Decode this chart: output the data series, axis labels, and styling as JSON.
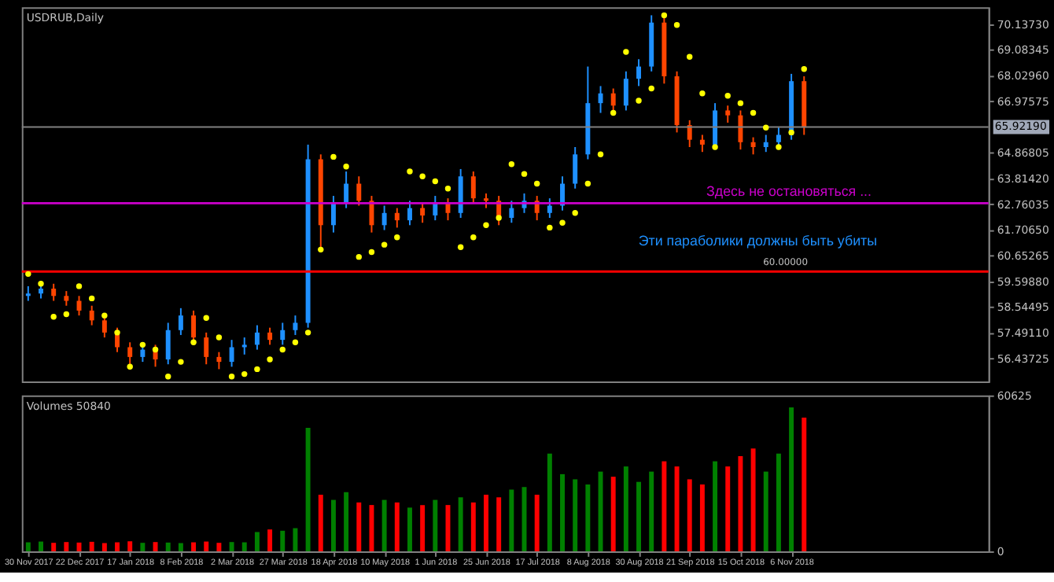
{
  "chart_data": [
    {
      "type": "candlestick",
      "title": "USDRUB,Daily",
      "categories": [
        null,
        null,
        null,
        null,
        null,
        null,
        null,
        null,
        null,
        null,
        null,
        null,
        null,
        null,
        null,
        null,
        null,
        null,
        null,
        null,
        null,
        null,
        null,
        null,
        null,
        null,
        null,
        null,
        null,
        null,
        null,
        null,
        null,
        null,
        null,
        null,
        null,
        null,
        null,
        null,
        null,
        null,
        null,
        null,
        null,
        null,
        null,
        null,
        null,
        null,
        null,
        null,
        null,
        null,
        null,
        null,
        null,
        null,
        null,
        null,
        null,
        null,
        null,
        null,
        null,
        null,
        null,
        null,
        null,
        null,
        null,
        null,
        null,
        null,
        null,
        null
      ],
      "ohlc": [
        [
          59.0,
          59.4,
          58.8,
          59.1
        ],
        [
          59.1,
          59.6,
          58.9,
          59.3
        ],
        [
          59.3,
          59.5,
          58.8,
          59.0
        ],
        [
          59.0,
          59.2,
          58.6,
          58.8
        ],
        [
          58.8,
          59.0,
          58.2,
          58.4
        ],
        [
          58.4,
          58.6,
          57.8,
          58.0
        ],
        [
          58.0,
          58.2,
          57.3,
          57.5
        ],
        [
          57.5,
          57.7,
          56.7,
          56.9
        ],
        [
          56.9,
          57.1,
          56.2,
          56.5
        ],
        [
          56.5,
          57.1,
          56.3,
          56.8
        ],
        [
          56.8,
          57.0,
          56.1,
          56.4
        ],
        [
          56.4,
          57.9,
          56.2,
          57.6
        ],
        [
          57.6,
          58.5,
          57.4,
          58.2
        ],
        [
          58.2,
          58.4,
          57.1,
          57.3
        ],
        [
          57.3,
          57.5,
          56.2,
          56.5
        ],
        [
          56.5,
          56.7,
          56.0,
          56.3
        ],
        [
          56.3,
          57.2,
          56.1,
          56.9
        ],
        [
          56.9,
          57.3,
          56.6,
          57.0
        ],
        [
          57.0,
          57.8,
          56.8,
          57.5
        ],
        [
          57.5,
          57.7,
          57.0,
          57.2
        ],
        [
          57.2,
          57.9,
          57.0,
          57.6
        ],
        [
          57.6,
          58.2,
          57.4,
          57.9
        ],
        [
          57.9,
          65.2,
          57.7,
          64.6
        ],
        [
          64.6,
          64.8,
          61.0,
          61.9
        ],
        [
          61.9,
          63.1,
          61.6,
          62.8
        ],
        [
          62.8,
          64.1,
          62.6,
          63.6
        ],
        [
          63.6,
          63.9,
          62.7,
          62.9
        ],
        [
          62.9,
          63.1,
          61.6,
          61.9
        ],
        [
          61.9,
          62.7,
          61.7,
          62.4
        ],
        [
          62.4,
          62.6,
          61.8,
          62.1
        ],
        [
          62.1,
          62.9,
          61.9,
          62.6
        ],
        [
          62.6,
          62.8,
          62.0,
          62.3
        ],
        [
          62.3,
          63.1,
          62.1,
          62.8
        ],
        [
          62.8,
          63.0,
          62.1,
          62.4
        ],
        [
          62.4,
          64.2,
          62.2,
          63.9
        ],
        [
          63.9,
          64.1,
          62.8,
          63.0
        ],
        [
          63.0,
          63.2,
          62.6,
          62.9
        ],
        [
          62.9,
          63.1,
          61.9,
          62.2
        ],
        [
          62.2,
          62.9,
          62.0,
          62.6
        ],
        [
          62.6,
          63.2,
          62.4,
          62.9
        ],
        [
          62.9,
          63.1,
          62.1,
          62.4
        ],
        [
          62.4,
          63.0,
          62.2,
          62.7
        ],
        [
          62.7,
          63.9,
          62.5,
          63.6
        ],
        [
          63.6,
          65.1,
          63.4,
          64.8
        ],
        [
          64.8,
          68.4,
          64.6,
          66.9
        ],
        [
          66.9,
          67.6,
          66.5,
          67.3
        ],
        [
          67.3,
          67.5,
          66.5,
          66.8
        ],
        [
          66.8,
          68.2,
          66.6,
          67.9
        ],
        [
          67.9,
          68.7,
          67.6,
          68.4
        ],
        [
          68.4,
          70.5,
          68.2,
          70.2
        ],
        [
          70.2,
          70.4,
          67.7,
          68.0
        ],
        [
          68.0,
          68.2,
          65.7,
          66.0
        ],
        [
          66.0,
          66.2,
          65.1,
          65.4
        ],
        [
          65.4,
          65.6,
          64.9,
          65.2
        ],
        [
          65.2,
          66.9,
          65.0,
          66.6
        ],
        [
          66.6,
          66.8,
          66.1,
          66.4
        ],
        [
          66.4,
          66.6,
          65.0,
          65.3
        ],
        [
          65.3,
          65.5,
          64.8,
          65.1
        ],
        [
          65.1,
          65.6,
          64.9,
          65.3
        ],
        [
          65.3,
          65.9,
          65.1,
          65.6
        ],
        [
          65.6,
          68.1,
          65.4,
          67.8
        ],
        [
          67.8,
          68.0,
          65.6,
          65.9
        ],
        null,
        null,
        null,
        null,
        null,
        null,
        null,
        null,
        null,
        null,
        null,
        null,
        null,
        null
      ],
      "colors": [
        "#1e90ff",
        "#1e90ff",
        "#ff4500",
        "#ff4500",
        "#ff4500",
        "#ff4500",
        "#ff4500",
        "#ff4500",
        "#ff4500",
        "#1e90ff",
        "#ff4500",
        "#1e90ff",
        "#1e90ff",
        "#ff4500",
        "#ff4500",
        "#ff4500",
        "#1e90ff",
        "#1e90ff",
        "#1e90ff",
        "#ff4500",
        "#1e90ff",
        "#1e90ff",
        "#1e90ff",
        "#ff4500",
        "#1e90ff",
        "#1e90ff",
        "#ff4500",
        "#ff4500",
        "#1e90ff",
        "#ff4500",
        "#1e90ff",
        "#ff4500",
        "#1e90ff",
        "#ff4500",
        "#1e90ff",
        "#ff4500",
        "#ff4500",
        "#ff4500",
        "#1e90ff",
        "#1e90ff",
        "#ff4500",
        "#1e90ff",
        "#1e90ff",
        "#1e90ff",
        "#1e90ff",
        "#1e90ff",
        "#ff4500",
        "#1e90ff",
        "#1e90ff",
        "#1e90ff",
        "#ff4500",
        "#ff4500",
        "#ff4500",
        "#ff4500",
        "#1e90ff",
        "#ff4500",
        "#ff4500",
        "#ff4500",
        "#1e90ff",
        "#1e90ff",
        "#1e90ff",
        "#ff4500",
        null,
        null,
        null,
        null,
        null,
        null,
        null,
        null,
        null,
        null,
        null,
        null,
        null,
        null
      ],
      "series": [
        {
          "type": "scatter",
          "color": "#ffff00",
          "marker": "circle",
          "values": [
            59.9,
            59.5,
            58.15,
            58.25,
            59.4,
            58.9,
            58.2,
            57.5,
            56.1,
            57.0,
            56.8,
            55.7,
            56.3,
            57.1,
            58.1,
            57.3,
            55.7,
            55.8,
            56.0,
            56.4,
            56.8,
            57.1,
            57.5,
            60.9,
            64.7,
            64.3,
            60.6,
            60.8,
            61.1,
            61.4,
            64.1,
            63.9,
            63.7,
            63.4,
            61.0,
            61.4,
            61.9,
            62.2,
            64.4,
            64.0,
            63.6,
            61.8,
            62.0,
            62.4,
            63.6,
            64.8,
            66.5,
            69.0,
            67.0,
            67.5,
            70.5,
            70.1,
            68.8,
            67.3,
            65.1,
            67.2,
            66.9,
            66.5,
            65.9,
            65.1,
            65.7,
            68.3,
            null,
            null,
            null,
            null,
            null,
            null,
            null,
            null,
            null,
            null,
            null,
            null,
            null,
            null
          ]
        }
      ],
      "ylim": [
        55.5,
        70.83
      ],
      "yticks": [
        {
          "value": 70.1373,
          "label": "70.13730"
        },
        {
          "value": 69.08345,
          "label": "69.08345"
        },
        {
          "value": 68.0296,
          "label": "68.02960"
        },
        {
          "value": 66.97575,
          "label": "66.97575"
        },
        {
          "value": 64.86805,
          "label": "64.86805"
        },
        {
          "value": 63.8142,
          "label": "63.81420"
        },
        {
          "value": 62.76035,
          "label": "62.76035"
        },
        {
          "value": 61.7065,
          "label": "61.70650"
        },
        {
          "value": 60.65265,
          "label": "60.65265"
        },
        {
          "value": 59.5988,
          "label": "59.59880"
        },
        {
          "value": 58.54495,
          "label": "58.54495"
        },
        {
          "value": 57.4911,
          "label": "57.49110"
        },
        {
          "value": 56.43725,
          "label": "56.43725"
        }
      ],
      "ref_lines": [
        {
          "axis": "y",
          "value": 65.9219,
          "label": "65.92190",
          "color": "#808080"
        },
        {
          "axis": "y",
          "value": 62.8,
          "color": "#cc00cc"
        },
        {
          "axis": "y",
          "value": 60.0,
          "label": "60.00000",
          "color": "#ff0000"
        }
      ],
      "annotations": [
        "Здесь не остановяться ...",
        "Эти параболики должны быть убиты"
      ],
      "tick_labels": "y"
    },
    {
      "type": "bar",
      "annotations": [
        "Volumes 50840"
      ],
      "categories": [
        "30 Nov 2017",
        null,
        null,
        null,
        "22 Dec 2017",
        null,
        null,
        null,
        "17 Jan 2018",
        null,
        null,
        null,
        "8 Feb 2018",
        null,
        null,
        null,
        "2 Mar 2018",
        null,
        null,
        null,
        "27 Mar 2018",
        null,
        null,
        null,
        "18 Apr 2018",
        null,
        null,
        null,
        "10 May 2018",
        null,
        null,
        null,
        "1 Jun 2018",
        null,
        null,
        null,
        "25 Jun 2018",
        null,
        null,
        null,
        "17 Jul 2018",
        null,
        null,
        null,
        "8 Aug 2018",
        null,
        null,
        null,
        "30 Aug 2018",
        null,
        null,
        null,
        "21 Sep 2018",
        null,
        null,
        null,
        "15 Oct 2018",
        null,
        null,
        null,
        "6 Nov 2018",
        null,
        null,
        null,
        null,
        null,
        null,
        null,
        null,
        null,
        null,
        null,
        null,
        null,
        null,
        null
      ],
      "values": [
        3500,
        3800,
        3300,
        3600,
        3400,
        3700,
        3200,
        3500,
        3900,
        3300,
        3600,
        3400,
        3200,
        3500,
        3800,
        3300,
        3600,
        3500,
        7500,
        8500,
        8000,
        9000,
        48000,
        22000,
        20000,
        23000,
        19000,
        18000,
        20000,
        19000,
        17000,
        18000,
        20000,
        18000,
        21000,
        19000,
        22000,
        21000,
        24000,
        25000,
        22000,
        38000,
        30000,
        28000,
        26000,
        31000,
        29000,
        33000,
        27000,
        31000,
        35000,
        33000,
        28000,
        26000,
        35000,
        33000,
        37000,
        40000,
        31000,
        38000,
        56000,
        52000,
        null,
        null,
        null,
        null,
        null,
        null,
        null,
        null,
        null,
        null,
        null,
        null,
        null,
        null
      ],
      "colors": [
        "#008000",
        "#008000",
        "#ff0000",
        "#ff0000",
        "#ff0000",
        "#ff0000",
        "#ff0000",
        "#ff0000",
        "#ff0000",
        "#008000",
        "#ff0000",
        "#008000",
        "#008000",
        "#ff0000",
        "#ff0000",
        "#ff0000",
        "#008000",
        "#008000",
        "#008000",
        "#ff0000",
        "#008000",
        "#008000",
        "#008000",
        "#ff0000",
        "#008000",
        "#008000",
        "#ff0000",
        "#ff0000",
        "#008000",
        "#ff0000",
        "#008000",
        "#ff0000",
        "#008000",
        "#ff0000",
        "#008000",
        "#ff0000",
        "#ff0000",
        "#ff0000",
        "#008000",
        "#008000",
        "#ff0000",
        "#008000",
        "#008000",
        "#008000",
        "#008000",
        "#008000",
        "#ff0000",
        "#008000",
        "#008000",
        "#008000",
        "#ff0000",
        "#ff0000",
        "#ff0000",
        "#ff0000",
        "#008000",
        "#ff0000",
        "#ff0000",
        "#ff0000",
        "#008000",
        "#008000",
        "#008000",
        "#ff0000",
        null,
        null,
        null,
        null,
        null,
        null,
        null,
        null,
        null,
        null,
        null,
        null,
        null,
        null
      ],
      "ylim": [
        0,
        60625
      ],
      "yticks": [
        0,
        60625
      ]
    }
  ]
}
